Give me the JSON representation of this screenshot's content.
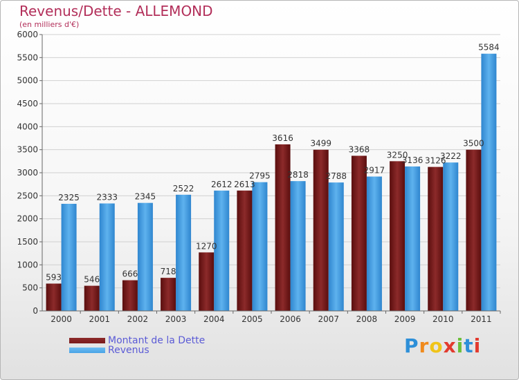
{
  "header": {
    "title": "Revenus/Dette - ALLEMOND",
    "subtitle": "(en milliers d'€)"
  },
  "colors": {
    "dette": "#7a1a1a",
    "revenus": "#4aa3e6",
    "axis": "#666666",
    "grid": "#d0d0d0"
  },
  "chart_data": {
    "type": "bar",
    "title": "Revenus/Dette - ALLEMOND",
    "ylabel": "(en milliers d'€)",
    "xlabel": "",
    "ylim": [
      0,
      6000
    ],
    "yticks": [
      0,
      500,
      1000,
      1500,
      2000,
      2500,
      3000,
      3500,
      4000,
      4500,
      5000,
      5500,
      6000
    ],
    "grid": true,
    "legend_position": "bottom-left",
    "categories": [
      "2000",
      "2001",
      "2002",
      "2003",
      "2004",
      "2005",
      "2006",
      "2007",
      "2008",
      "2009",
      "2010",
      "2011"
    ],
    "series": [
      {
        "name": "Montant de la Dette",
        "color": "#7a1a1a",
        "values": [
          593,
          546,
          666,
          718,
          1270,
          2613,
          3616,
          3499,
          3368,
          3250,
          3126,
          3500
        ]
      },
      {
        "name": "Revenus",
        "color": "#4aa3e6",
        "values": [
          2325,
          2333,
          2345,
          2522,
          2612,
          2795,
          2818,
          2788,
          2917,
          3136,
          3222,
          5584
        ]
      }
    ]
  },
  "legend": {
    "items": [
      {
        "label": "Montant de la Dette",
        "color": "#7a1a1a"
      },
      {
        "label": "Revenus",
        "color": "#4aa3e6"
      }
    ]
  },
  "logo": {
    "letters": [
      "P",
      "r",
      "o",
      "x",
      "i",
      "t",
      "i"
    ],
    "colors": [
      "#2d8fd8",
      "#f08a1c",
      "#f0c419",
      "#e23a2e",
      "#6cbf3a",
      "#2d8fd8",
      "#e23a2e"
    ]
  }
}
